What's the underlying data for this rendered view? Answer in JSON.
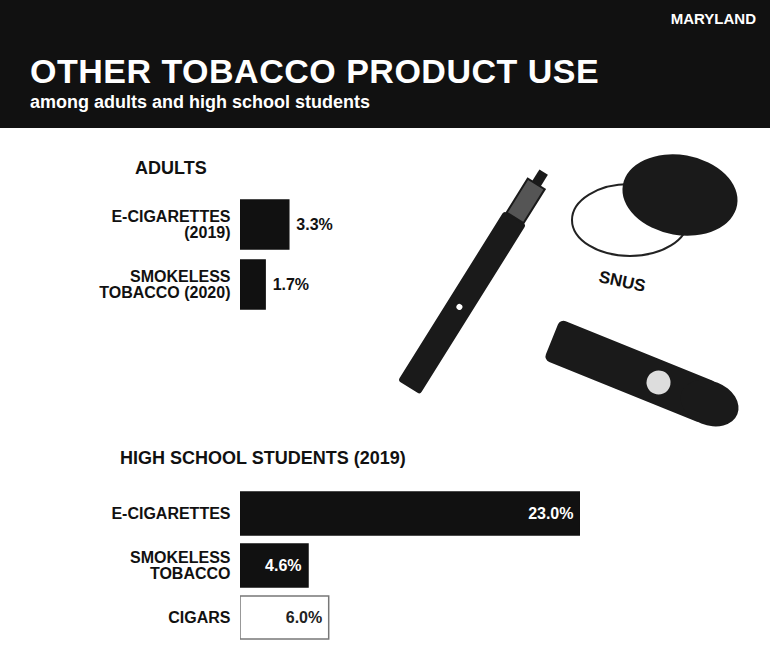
{
  "header": {
    "title": "OTHER TOBACCO PRODUCT USE",
    "subtitle": "among adults and high school students",
    "region": "MARYLAND"
  },
  "illustration_label": "SNUS",
  "chart_data": [
    {
      "type": "bar",
      "title": "ADULTS",
      "orientation": "horizontal",
      "categories": [
        "E-CIGARETTES (2019)",
        "SMOKELESS TOBACCO (2020)"
      ],
      "values": [
        3.3,
        1.7
      ],
      "value_labels": [
        "3.3%",
        "1.7%"
      ],
      "data_labels": true,
      "tick_labels": "y",
      "colors": [
        "#111111",
        "#111111"
      ]
    },
    {
      "type": "bar",
      "title": "HIGH SCHOOL STUDENTS (2019)",
      "orientation": "horizontal",
      "categories": [
        "E-CIGARETTES",
        "SMOKELESS TOBACCO",
        "CIGARS"
      ],
      "values": [
        23.0,
        4.6,
        6.0
      ],
      "value_labels": [
        "23.0%",
        "4.6%",
        "6.0%"
      ],
      "data_labels": true,
      "tick_labels": "y",
      "colors": [
        "#111111",
        "#111111",
        "#ffffff"
      ]
    }
  ]
}
